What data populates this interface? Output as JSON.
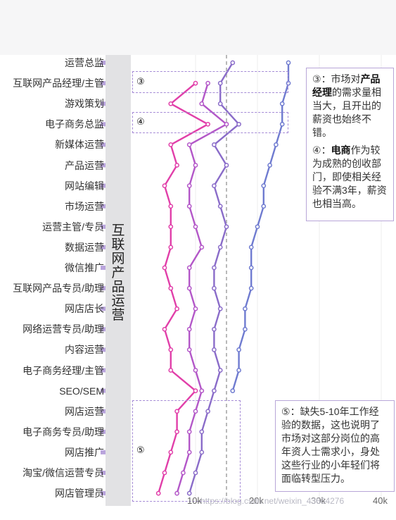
{
  "chart_data": {
    "type": "line",
    "orientation": "horizontal",
    "group_label": "互联网产品运营",
    "categories": [
      "运营总监",
      "互联网产品经理/主管",
      "游戏策划",
      "电子商务总监",
      "新媒体运营",
      "产品运营",
      "网站编辑",
      "市场运营",
      "运营主管/专员",
      "数据运营",
      "微信推广",
      "互联网产品专员/助理",
      "网店店长",
      "网络运营专员/助理",
      "内容运营",
      "电子商务经理/主管",
      "SEO/SEM",
      "网店运营",
      "电子商务专员/助理",
      "网店推广",
      "淘宝/微信运营专员",
      "网店管理员"
    ],
    "x_ticks": [
      "10k",
      "20k",
      "30k",
      "40k"
    ],
    "xlim": [
      0,
      40
    ],
    "series": [
      {
        "color": "#e13fa9",
        "values": [
          null,
          10,
          6,
          12,
          6,
          7,
          5,
          6,
          6,
          6,
          5,
          6,
          7,
          5,
          6,
          6,
          10,
          7,
          7,
          6,
          5,
          4
        ]
      },
      {
        "color": "#b357c8",
        "values": [
          null,
          12,
          11,
          15,
          9,
          10,
          9,
          9,
          10,
          11,
          9,
          9,
          10,
          9,
          9,
          10,
          11,
          10,
          9,
          9,
          8,
          7
        ]
      },
      {
        "color": "#8a6cc9",
        "values": [
          16,
          14,
          14,
          17,
          13,
          15,
          13,
          14,
          15,
          14,
          13,
          13,
          14,
          13,
          13,
          14,
          13,
          12,
          11,
          11,
          10,
          9
        ]
      },
      {
        "color": "#6f7bd0",
        "values": [
          25,
          25,
          24,
          24,
          23,
          22,
          21,
          21,
          20,
          19,
          19,
          19,
          18,
          18,
          17,
          17,
          16,
          null,
          null,
          null,
          null,
          null
        ]
      }
    ],
    "reference_line": 15
  },
  "notes": {
    "n3": {
      "marker": "③",
      "prefix": "：市场对",
      "bold": "产品经理",
      "rest": "的需求量相当大，且开出的薪资也始终不错。"
    },
    "n4": {
      "marker": "④",
      "prefix": "：",
      "bold": "电商",
      "rest": "作为较为成熟的创收部门，即使相关经验不满3年，薪资也相当高。"
    },
    "n5": {
      "marker": "⑤",
      "text": "：缺失5-10年工作经验的数据，这也说明了市场对这部分岗位的高年资人士需求小，身处这些行业的小年轻们将面临转型压力。"
    }
  },
  "markers": {
    "m3": "③",
    "m4": "④",
    "m5": "⑤"
  },
  "watermark": "https://blog.csdn.net/weixin_43664276"
}
